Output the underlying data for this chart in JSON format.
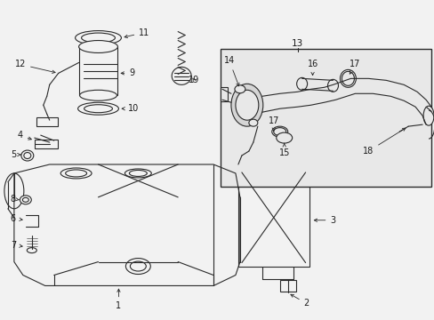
{
  "bg_color": "#f2f2f2",
  "line_color": "#2a2a2a",
  "text_color": "#1a1a1a",
  "box_bg": "#e8e8e8",
  "fig_width": 4.89,
  "fig_height": 3.6,
  "dpi": 100
}
